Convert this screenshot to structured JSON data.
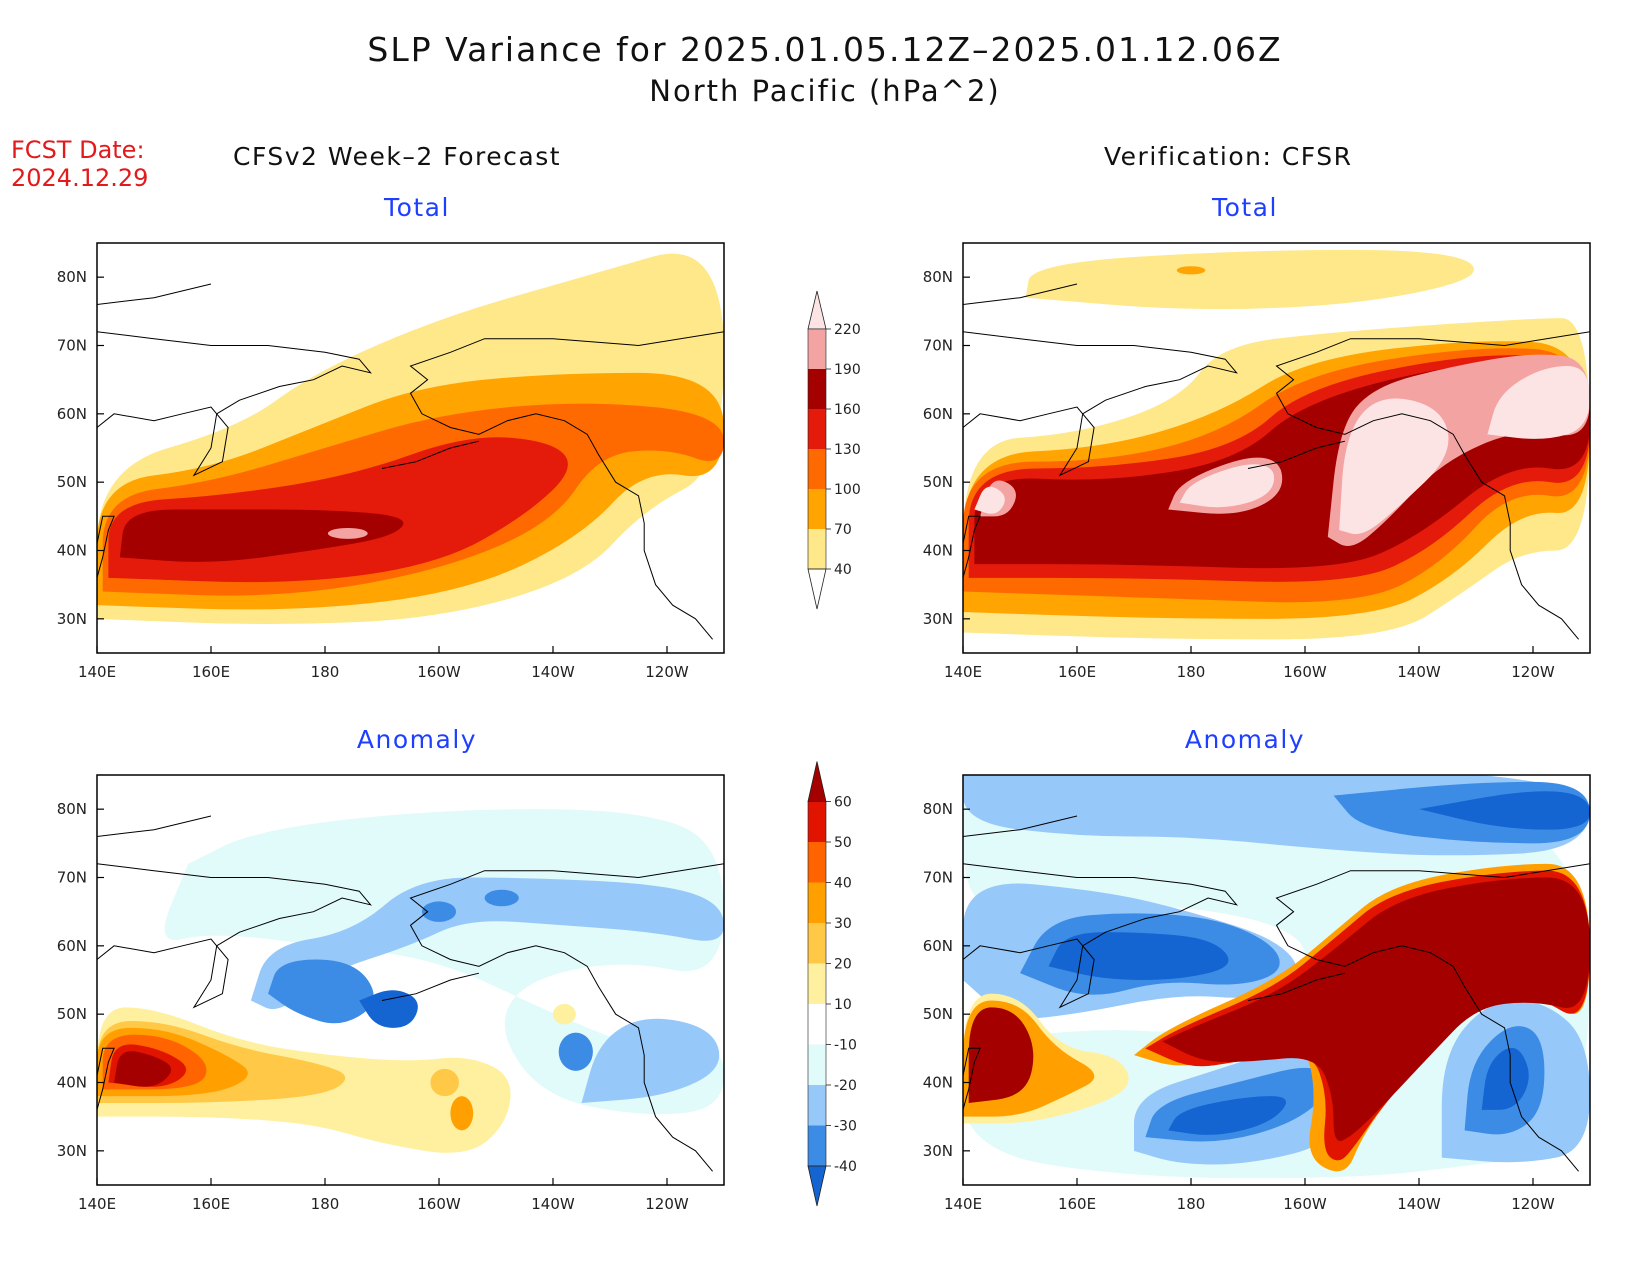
{
  "title": "SLP Variance for 2025.01.05.12Z–2025.01.12.06Z",
  "subtitle": "North Pacific (hPa^2)",
  "fcst_label": "FCST Date:",
  "fcst_date": "2024.12.29",
  "left_header": "CFSv2 Week–2 Forecast",
  "right_header": "Verification: CFSR",
  "panels": {
    "tl": {
      "title": "Total"
    },
    "tr": {
      "title": "Total"
    },
    "bl": {
      "title": "Anomaly"
    },
    "br": {
      "title": "Anomaly"
    }
  },
  "chart_data": {
    "type": "heatmap",
    "x_ticks": [
      "140E",
      "160E",
      "180",
      "160W",
      "140W",
      "120W"
    ],
    "y_ticks": [
      "30N",
      "40N",
      "50N",
      "60N",
      "70N",
      "80N"
    ],
    "total_colorbar": {
      "levels": [
        "40",
        "70",
        "100",
        "130",
        "160",
        "190",
        "220"
      ],
      "colors": [
        "#ffffff",
        "#fee88a",
        "#ffa400",
        "#ff6a00",
        "#e41a0b",
        "#a50000",
        "#f4a3a3",
        "#fde4e4"
      ]
    },
    "anomaly_colorbar": {
      "levels": [
        "-40",
        "-30",
        "-20",
        "-10",
        "10",
        "20",
        "30",
        "40",
        "50",
        "60"
      ],
      "colors": [
        "#1464d2",
        "#3c8ce6",
        "#96c8fa",
        "#e1fafa",
        "#ffffff",
        "#fff0a0",
        "#ffc846",
        "#ffa000",
        "#ff6400",
        "#e11400",
        "#a50000"
      ]
    }
  }
}
